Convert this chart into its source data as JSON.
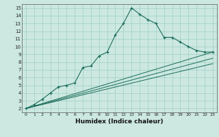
{
  "xlabel": "Humidex (Indice chaleur)",
  "bg_color": "#cce8e0",
  "grid_color": "#9ecfc4",
  "line_color": "#1a6b5a",
  "xlim": [
    -0.5,
    23.5
  ],
  "ylim": [
    1.5,
    15.5
  ],
  "xticks": [
    0,
    1,
    2,
    3,
    4,
    5,
    6,
    7,
    8,
    9,
    10,
    11,
    12,
    13,
    14,
    15,
    16,
    17,
    18,
    19,
    20,
    21,
    22,
    23
  ],
  "yticks": [
    2,
    3,
    4,
    5,
    6,
    7,
    8,
    9,
    10,
    11,
    12,
    13,
    14,
    15
  ],
  "main_x": [
    0,
    1,
    2,
    3,
    4,
    5,
    6,
    7,
    8,
    9,
    10,
    11,
    12,
    13,
    14,
    15,
    16,
    17,
    18,
    19,
    20,
    21,
    22,
    23
  ],
  "main_y": [
    2.0,
    2.5,
    3.2,
    4.0,
    4.8,
    5.0,
    5.3,
    7.3,
    7.5,
    8.8,
    9.3,
    11.5,
    13.0,
    15.0,
    14.2,
    13.5,
    13.0,
    11.2,
    11.2,
    10.6,
    10.0,
    9.5,
    9.3,
    9.3
  ],
  "line2_x": [
    0,
    23
  ],
  "line2_y": [
    2.0,
    9.3
  ],
  "line3_x": [
    0,
    23
  ],
  "line3_y": [
    2.0,
    8.5
  ],
  "line4_x": [
    0,
    23
  ],
  "line4_y": [
    2.0,
    7.8
  ]
}
